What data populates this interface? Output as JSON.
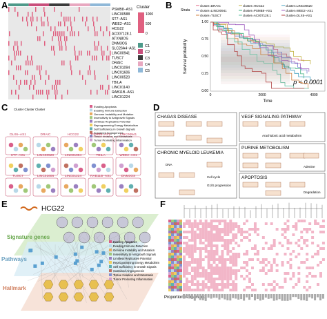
{
  "panels": {
    "a": {
      "letter": "A",
      "legend_title": "Cluster",
      "scale": [
        "1000",
        "500",
        "0"
      ],
      "clusters": [
        "C1",
        "C2",
        "C3",
        "C4",
        "C5"
      ],
      "genes": [
        "PSMB8−AS1",
        "LINC00588",
        "ST7−AS1",
        "WEE2−AS1",
        "HCG22",
        "AC007128.1",
        "ATXN8OS",
        "DNM3OS",
        "SLC26A4−AS1",
        "LINC00941",
        "TUSC7",
        "DRAIC",
        "LINC01094",
        "LINC01606",
        "LINC00520",
        "TBILA",
        "LINC01140",
        "RAB11B−AS1",
        "LINC01224"
      ]
    },
    "b": {
      "letter": "B",
      "strata": "Strata",
      "legend": [
        "cluster=DRAIC",
        "cluster=HCG22",
        "cluster=LINC00520",
        "cluster=LINC00941",
        "cluster=PSMB8−AS1",
        "cluster=WEE2−AS1",
        "cluster=TUSC7",
        "cluster=AC007128.1",
        "cluster=DLX6−AS1"
      ],
      "ylabel": "Survival probability",
      "xlabel": "Time",
      "yticks": [
        "0.00",
        "0.25",
        "0.50",
        "0.75",
        "1.00"
      ],
      "xticks": [
        "0",
        "2000",
        "4000"
      ],
      "pvalue": "p < 0.0001"
    },
    "c": {
      "letter": "C",
      "legend_title": "Cluster Cluster Cluster",
      "hallmarks": [
        "Evading Apoptosis",
        "Evading Immune Detection",
        "Genome Instability and Mutation",
        "Insensitivity to Antigrowth Signals",
        "Limitless Replicative Potential",
        "Reprogramming Energy Metabolism",
        "Self Sufficiency in Growth Signals",
        "Sustained Angiogenesis",
        "Tissue Invasion and Metastasis",
        "Tumor Promoting Inflammation"
      ],
      "labels": [
        "DLX6−AS1",
        "DRAIC",
        "HCG22",
        "PSMB8−AS1",
        "LINC00941",
        "ST7−AS1",
        "LINC00520",
        "LINC01094",
        "TBILA",
        "WEE2−AS1",
        "TUSC7",
        "LINC01606",
        "LINC01224",
        "RAB11B−AS1",
        "DNM3OS"
      ]
    },
    "d": {
      "letter": "D",
      "pathways": [
        "CHAGAS DISEASE",
        "VEGF SIGNALING PATHWAY",
        "CHRONIC MYELOID LEUKEMIA",
        "PURINE METOBOLISM",
        "APOPTOSIS"
      ],
      "notes": [
        "Cell cycle",
        "G1/S progression",
        "DNA",
        "Arachidonic acid metabolism",
        "Adenine",
        "Degradation"
      ]
    },
    "e": {
      "letter": "E",
      "hub": "HCG22",
      "levels": [
        "Signature genes",
        "Pathways",
        "Hallmark"
      ]
    },
    "f": {
      "letter": "F",
      "footer": "Proportion of hallmarks"
    }
  }
}
